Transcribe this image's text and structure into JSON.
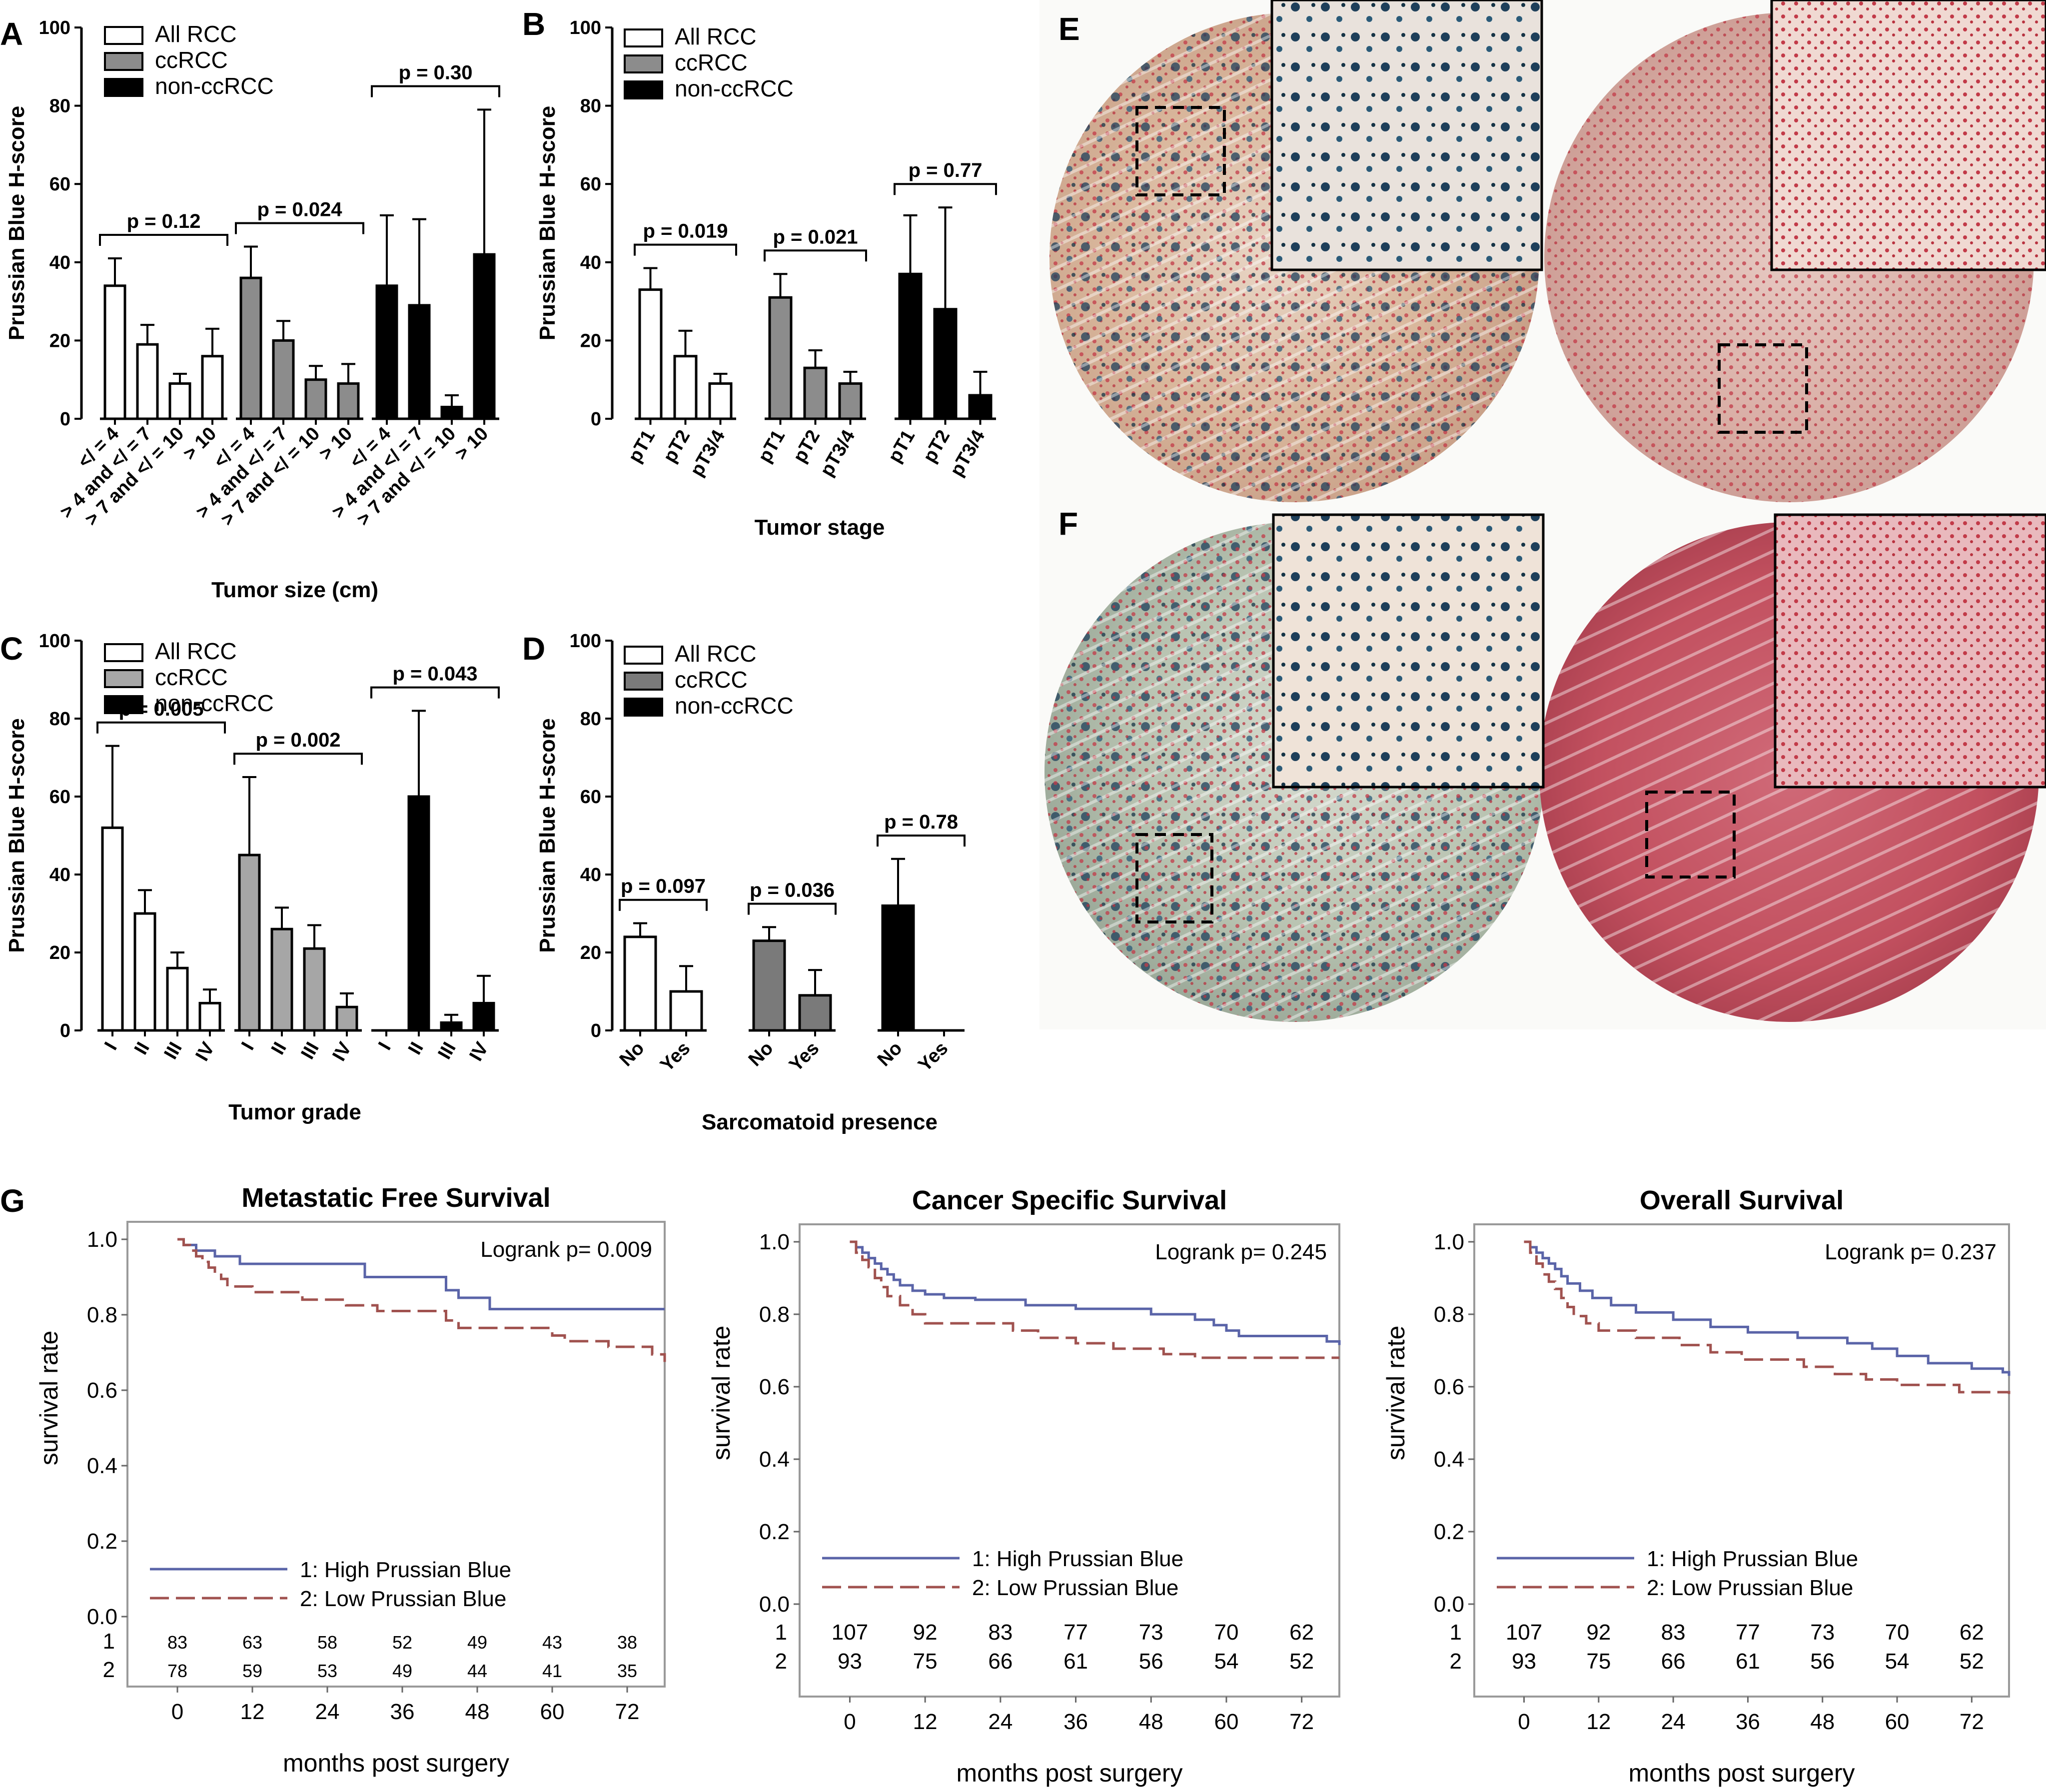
{
  "chart_data": [
    {
      "panel": "A",
      "type": "bar",
      "ylabel": "Prussian Blue H-score",
      "xlabel": "Tumor size (cm)",
      "ylim": [
        0,
        100
      ],
      "yticks": [
        0,
        20,
        40,
        60,
        80,
        100
      ],
      "legend": [
        "All RCC",
        "ccRCC",
        "non-ccRCC"
      ],
      "groups": [
        {
          "name": "All RCC",
          "color": "#ffffff",
          "p_text": "p = 0.12",
          "categories": [
            "</ = 4",
            "> 4 and </ = 7",
            "> 7 and </ = 10",
            "> 10"
          ],
          "values": [
            34,
            19,
            9,
            16
          ],
          "errors": [
            7,
            5,
            2.5,
            7
          ]
        },
        {
          "name": "ccRCC",
          "color": "#8c8c8c",
          "p_text": "p = 0.024",
          "categories": [
            "</ = 4",
            "> 4 and </ = 7",
            "> 7 and </ = 10",
            "> 10"
          ],
          "values": [
            36,
            20,
            10,
            9
          ],
          "errors": [
            8,
            5,
            3.5,
            5
          ]
        },
        {
          "name": "non-ccRCC",
          "color": "#000000",
          "p_text": "p = 0.30",
          "categories": [
            "</ = 4",
            "> 4 and </ = 7",
            "> 7 and </ = 10",
            "> 10"
          ],
          "values": [
            34,
            29,
            3,
            42
          ],
          "errors": [
            18,
            22,
            3,
            37
          ]
        }
      ]
    },
    {
      "panel": "B",
      "type": "bar",
      "ylabel": "Prussian Blue H-score",
      "xlabel": "Tumor stage",
      "ylim": [
        0,
        100
      ],
      "yticks": [
        0,
        20,
        40,
        60,
        80,
        100
      ],
      "legend": [
        "All RCC",
        "ccRCC",
        "non-ccRCC"
      ],
      "groups": [
        {
          "name": "All RCC",
          "color": "#ffffff",
          "p_text": "p = 0.019",
          "categories": [
            "pT1",
            "pT2",
            "pT3/4"
          ],
          "values": [
            33,
            16,
            9
          ],
          "errors": [
            5.5,
            6.5,
            2.5
          ]
        },
        {
          "name": "ccRCC",
          "color": "#8c8c8c",
          "p_text": "p = 0.021",
          "categories": [
            "pT1",
            "pT2",
            "pT3/4"
          ],
          "values": [
            31,
            13,
            9
          ],
          "errors": [
            6,
            4.5,
            3
          ]
        },
        {
          "name": "non-ccRCC",
          "color": "#000000",
          "p_text": "p = 0.77",
          "categories": [
            "pT1",
            "pT2",
            "pT3/4"
          ],
          "values": [
            37,
            28,
            6
          ],
          "errors": [
            15,
            26,
            6
          ]
        }
      ]
    },
    {
      "panel": "C",
      "type": "bar",
      "ylabel": "Prussian Blue H-score",
      "xlabel": "Tumor grade",
      "ylim": [
        0,
        100
      ],
      "yticks": [
        0,
        20,
        40,
        60,
        80,
        100
      ],
      "legend": [
        "All RCC",
        "ccRCC",
        "non-ccRCC"
      ],
      "groups": [
        {
          "name": "All RCC",
          "color": "#ffffff",
          "p_text": "p = 0.005",
          "categories": [
            "I",
            "II",
            "III",
            "IV"
          ],
          "values": [
            52,
            30,
            16,
            7
          ],
          "errors": [
            21,
            6,
            4,
            3.5
          ]
        },
        {
          "name": "ccRCC",
          "color": "#a6a6a6",
          "p_text": "p = 0.002",
          "categories": [
            "I",
            "II",
            "III",
            "IV"
          ],
          "values": [
            45,
            26,
            21,
            6
          ],
          "errors": [
            20,
            5.5,
            6,
            3.5
          ]
        },
        {
          "name": "non-ccRCC",
          "color": "#000000",
          "p_text": "p = 0.043",
          "categories": [
            "I",
            "II",
            "III",
            "IV"
          ],
          "values": [
            0,
            60,
            2,
            7
          ],
          "errors": [
            0,
            22,
            2,
            7
          ]
        }
      ]
    },
    {
      "panel": "D",
      "type": "bar",
      "ylabel": "Prussian Blue H-score",
      "xlabel": "Sarcomatoid presence",
      "ylim": [
        0,
        100
      ],
      "yticks": [
        0,
        20,
        40,
        60,
        80,
        100
      ],
      "legend": [
        "All RCC",
        "ccRCC",
        "non-ccRCC"
      ],
      "groups": [
        {
          "name": "All RCC",
          "color": "#ffffff",
          "p_text": "p = 0.097",
          "categories": [
            "No",
            "Yes"
          ],
          "values": [
            24,
            10
          ],
          "errors": [
            3.5,
            6.5
          ]
        },
        {
          "name": "ccRCC",
          "color": "#7a7a7a",
          "p_text": "p = 0.036",
          "categories": [
            "No",
            "Yes"
          ],
          "values": [
            23,
            9
          ],
          "errors": [
            3.5,
            6.5
          ]
        },
        {
          "name": "non-ccRCC",
          "color": "#000000",
          "p_text": "p = 0.78",
          "categories": [
            "No",
            "Yes"
          ],
          "values": [
            32,
            0
          ],
          "errors": [
            12,
            0
          ]
        }
      ]
    },
    {
      "panel": "G",
      "type": "line",
      "subtype": "kaplan-meier",
      "title": "Metastatic Free Survival",
      "xlabel": "months post surgery",
      "ylabel": "survival rate",
      "xlim": [
        -8,
        78
      ],
      "ylim": [
        0,
        1
      ],
      "xticks": [
        0,
        12,
        24,
        36,
        48,
        60,
        72
      ],
      "yticks": [
        "0.0",
        "0.2",
        "0.4",
        "0.6",
        "0.8",
        "1.0"
      ],
      "logrank": "Logrank p= 0.009",
      "series": [
        {
          "name": "1: High Prussian Blue",
          "color": "#5a64a8",
          "x": [
            0,
            1,
            3,
            6,
            10,
            30,
            36,
            43,
            45,
            50,
            78
          ],
          "y": [
            1.0,
            0.985,
            0.97,
            0.955,
            0.935,
            0.9,
            0.9,
            0.865,
            0.845,
            0.815,
            0.815
          ]
        },
        {
          "name": "2: Low Prussian Blue",
          "color": "#a0524f",
          "x": [
            0,
            1,
            2,
            3,
            4,
            5,
            6,
            7,
            8,
            12,
            20,
            27,
            32,
            43,
            45,
            60,
            62,
            69,
            76,
            78
          ],
          "y": [
            1.0,
            0.985,
            0.97,
            0.955,
            0.94,
            0.925,
            0.91,
            0.895,
            0.875,
            0.86,
            0.84,
            0.825,
            0.81,
            0.785,
            0.765,
            0.745,
            0.73,
            0.715,
            0.695,
            0.675
          ]
        }
      ],
      "risk_table": {
        "rows": [
          "1",
          "2"
        ],
        "values": [
          [
            83,
            63,
            58,
            52,
            49,
            43,
            38
          ],
          [
            78,
            59,
            53,
            49,
            44,
            41,
            35
          ]
        ]
      }
    },
    {
      "panel": "G",
      "type": "line",
      "subtype": "kaplan-meier",
      "title": "Cancer Specific Survival",
      "xlabel": "months post surgery",
      "ylabel": "survival rate",
      "xlim": [
        -8,
        78
      ],
      "ylim": [
        0,
        1
      ],
      "xticks": [
        0,
        12,
        24,
        36,
        48,
        60,
        72
      ],
      "yticks": [
        "0.0",
        "0.2",
        "0.4",
        "0.6",
        "0.8",
        "1.0"
      ],
      "logrank": "Logrank p= 0.245",
      "series": [
        {
          "name": "1: High Prussian Blue",
          "color": "#5a64a8",
          "x": [
            0,
            1,
            2,
            3,
            4,
            5,
            6,
            7,
            8,
            10,
            12,
            15,
            20,
            28,
            36,
            48,
            55,
            58,
            60,
            62,
            76,
            78
          ],
          "y": [
            1.0,
            0.985,
            0.97,
            0.955,
            0.94,
            0.925,
            0.91,
            0.895,
            0.88,
            0.865,
            0.855,
            0.845,
            0.84,
            0.825,
            0.815,
            0.8,
            0.785,
            0.77,
            0.755,
            0.74,
            0.725,
            0.715
          ]
        },
        {
          "name": "2: Low Prussian Blue",
          "color": "#a0524f",
          "x": [
            0,
            1,
            2,
            3,
            4,
            5,
            6,
            8,
            10,
            12,
            26,
            30,
            36,
            42,
            50,
            55,
            78
          ],
          "y": [
            1.0,
            0.97,
            0.95,
            0.93,
            0.9,
            0.875,
            0.85,
            0.825,
            0.8,
            0.775,
            0.755,
            0.735,
            0.72,
            0.705,
            0.69,
            0.68,
            0.68
          ]
        }
      ],
      "risk_table": {
        "rows": [
          "1",
          "2"
        ],
        "values": [
          [
            107,
            92,
            83,
            77,
            73,
            70,
            62
          ],
          [
            93,
            75,
            66,
            61,
            56,
            54,
            52
          ]
        ]
      }
    },
    {
      "panel": "G",
      "type": "line",
      "subtype": "kaplan-meier",
      "title": "Overall Survival",
      "xlabel": "months post surgery",
      "ylabel": "survival rate",
      "xlim": [
        -8,
        78
      ],
      "ylim": [
        0,
        1
      ],
      "xticks": [
        0,
        12,
        24,
        36,
        48,
        60,
        72
      ],
      "yticks": [
        "0.0",
        "0.2",
        "0.4",
        "0.6",
        "0.8",
        "1.0"
      ],
      "logrank": "Logrank p= 0.237",
      "series": [
        {
          "name": "1: High Prussian Blue",
          "color": "#5a64a8",
          "x": [
            0,
            1,
            2,
            3,
            4,
            5,
            6,
            7,
            9,
            11,
            14,
            18,
            24,
            30,
            36,
            44,
            52,
            56,
            60,
            65,
            72,
            77,
            78
          ],
          "y": [
            1.0,
            0.985,
            0.97,
            0.955,
            0.94,
            0.925,
            0.905,
            0.885,
            0.865,
            0.845,
            0.825,
            0.805,
            0.785,
            0.765,
            0.75,
            0.735,
            0.72,
            0.705,
            0.685,
            0.665,
            0.65,
            0.64,
            0.63
          ]
        },
        {
          "name": "2: Low Prussian Blue",
          "color": "#a0524f",
          "x": [
            0,
            1,
            2,
            3,
            4,
            5,
            6,
            7,
            8,
            10,
            12,
            18,
            25,
            30,
            35,
            45,
            50,
            55,
            60,
            70,
            78
          ],
          "y": [
            1.0,
            0.97,
            0.94,
            0.91,
            0.89,
            0.87,
            0.845,
            0.82,
            0.795,
            0.775,
            0.755,
            0.735,
            0.715,
            0.695,
            0.675,
            0.655,
            0.635,
            0.62,
            0.605,
            0.585,
            0.58
          ]
        }
      ],
      "risk_table": {
        "rows": [
          "1",
          "2"
        ],
        "values": [
          [
            107,
            92,
            83,
            77,
            73,
            70,
            62
          ],
          [
            93,
            75,
            66,
            61,
            56,
            54,
            52
          ]
        ]
      }
    }
  ],
  "micrographs": [
    {
      "panel": "E",
      "left_tissue": "iron-rich-stained-core",
      "right_tissue": "low-staining-core",
      "insets": 2
    },
    {
      "panel": "F",
      "left_tissue": "iron-rich-stained-core",
      "right_tissue": "low-staining-core",
      "insets": 2
    }
  ],
  "panel_letters": [
    "A",
    "B",
    "C",
    "D",
    "E",
    "F",
    "G"
  ]
}
